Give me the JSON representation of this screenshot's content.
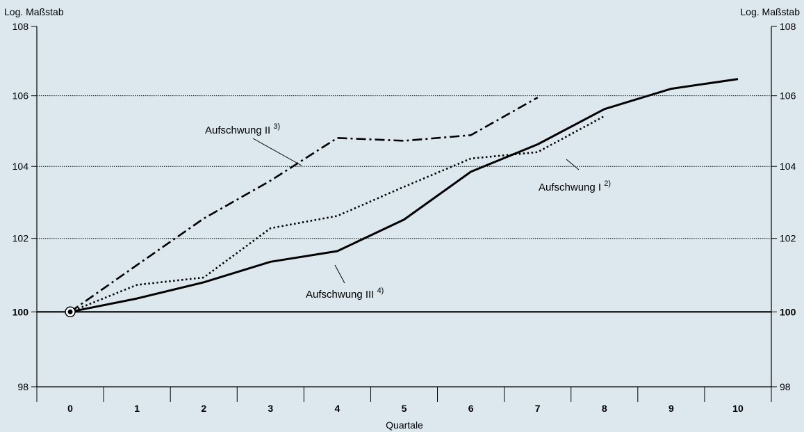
{
  "chart_data": {
    "type": "line",
    "y_scale": "log",
    "ylabel_left": "Log. Maßstab",
    "ylabel_right": "Log. Maßstab",
    "xlabel": "Quartale",
    "x": [
      0,
      1,
      2,
      3,
      4,
      5,
      6,
      7,
      8,
      9,
      10
    ],
    "x_tick_labels": [
      "0",
      "1",
      "2",
      "3",
      "4",
      "5",
      "6",
      "7",
      "8",
      "9",
      "10"
    ],
    "ylim": [
      98,
      108
    ],
    "y_ticks": [
      98,
      100,
      102,
      104,
      106,
      108
    ],
    "y_tick_labels": [
      "98",
      "100",
      "102",
      "104",
      "106",
      "108"
    ],
    "y_bold_ticks": [
      100
    ],
    "gridlines_at": [
      102,
      104,
      106
    ],
    "baseline": 100,
    "series": [
      {
        "label": "Aufschwung I",
        "label_note": "2)",
        "line_style": "dotted",
        "points": [
          [
            0,
            100
          ],
          [
            1,
            100.73
          ],
          [
            2,
            100.93
          ],
          [
            3,
            102.28
          ],
          [
            4,
            102.62
          ],
          [
            5,
            103.43
          ],
          [
            6,
            104.22
          ],
          [
            7,
            104.4
          ],
          [
            8,
            105.42
          ]
        ]
      },
      {
        "label": "Aufschwung II",
        "label_note": "3)",
        "line_style": "dash-dot",
        "points": [
          [
            0,
            100
          ],
          [
            1,
            101.27
          ],
          [
            2,
            102.55
          ],
          [
            3,
            103.6
          ],
          [
            4,
            104.8
          ],
          [
            5,
            104.72
          ],
          [
            6,
            104.88
          ],
          [
            7,
            105.95
          ]
        ]
      },
      {
        "label": "Aufschwung III",
        "label_note": "4)",
        "line_style": "solid",
        "points": [
          [
            0,
            100
          ],
          [
            1,
            100.36
          ],
          [
            2,
            100.8
          ],
          [
            3,
            101.36
          ],
          [
            4,
            101.65
          ],
          [
            5,
            102.52
          ],
          [
            6,
            103.85
          ],
          [
            7,
            104.62
          ],
          [
            8,
            105.62
          ],
          [
            9,
            106.2
          ],
          [
            10,
            106.48
          ]
        ]
      }
    ]
  }
}
